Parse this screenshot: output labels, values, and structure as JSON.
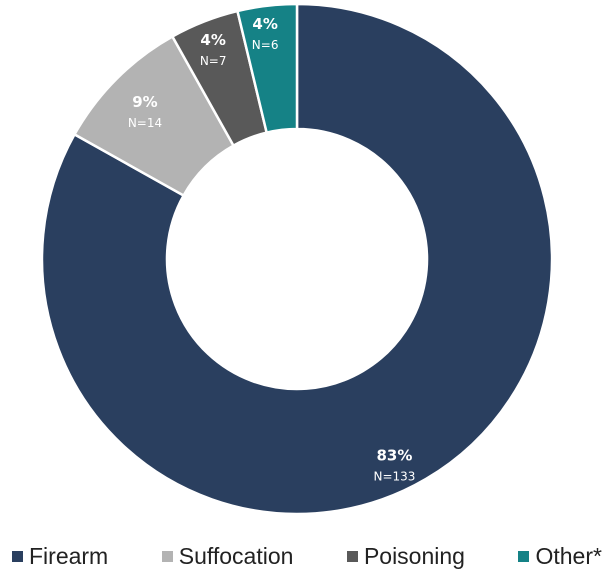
{
  "chart_data": {
    "type": "pie",
    "style": "donut",
    "title": "",
    "slices": [
      {
        "name": "Firearm",
        "pct_label": "83%",
        "n_label": "N=133",
        "value": 133,
        "color": "#2a3f5f"
      },
      {
        "name": "Suffocation",
        "pct_label": "9%",
        "n_label": "N=14",
        "value": 14,
        "color": "#b3b3b3"
      },
      {
        "name": "Poisoning",
        "pct_label": "4%",
        "n_label": "N=7",
        "value": 7,
        "color": "#595959"
      },
      {
        "name": "Other*",
        "pct_label": "4%",
        "n_label": "N=6",
        "value": 6,
        "color": "#158286"
      }
    ],
    "legend_placement": "bottom"
  }
}
